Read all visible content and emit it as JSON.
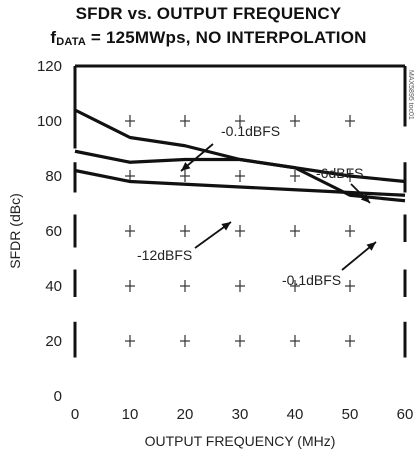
{
  "title_line1": "SFDR vs. OUTPUT FREQUENCY",
  "title_line2_main": "f",
  "title_line2_sub": "DATA",
  "title_line2_rest": " = 125MWps, NO INTERPOLATION",
  "chart_id": "MAX5895 toc01",
  "chart_data": {
    "type": "line",
    "title": "SFDR vs. OUTPUT FREQUENCY fDATA = 125MWps, NO INTERPOLATION",
    "xlabel": "OUTPUT FREQUENCY (MHz)",
    "ylabel": "SFDR (dBc)",
    "xlim": [
      0,
      60
    ],
    "ylim": [
      0,
      120
    ],
    "xticks": [
      "0",
      "10",
      "20",
      "30",
      "40",
      "50",
      "60"
    ],
    "yticks": [
      "0",
      "20",
      "40",
      "60",
      "80",
      "100",
      "120"
    ],
    "grid": "cross markers",
    "series": [
      {
        "name": "-0.1dBFS",
        "x": [
          0,
          10,
          20,
          30,
          40,
          50,
          60
        ],
        "y": [
          104,
          94,
          91,
          86,
          83,
          73,
          71
        ]
      },
      {
        "name": "-6dBFS",
        "x": [
          0,
          10,
          20,
          30,
          40,
          50,
          60
        ],
        "y": [
          89,
          85,
          86,
          86,
          83,
          80,
          78
        ]
      },
      {
        "name": "-12dBFS",
        "x": [
          0,
          10,
          20,
          30,
          40,
          50,
          60
        ],
        "y": [
          82,
          78,
          77,
          76,
          75,
          74,
          73
        ]
      }
    ],
    "annotations": [
      "-0.1dBFS",
      "-6dBFS",
      "-12dBFS",
      "-0.1dBFS"
    ]
  }
}
